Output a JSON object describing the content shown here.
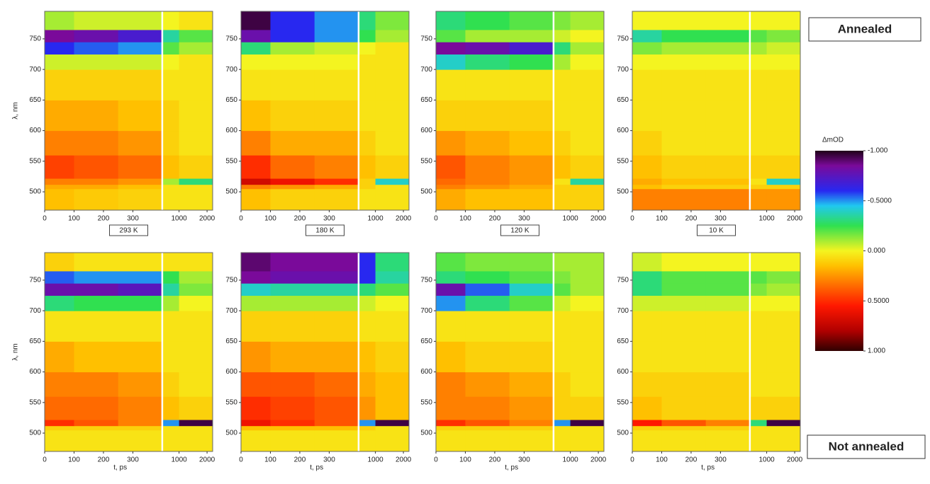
{
  "chart_data": {
    "type": "heatmap",
    "x_label": "t, ps",
    "y_label": "λ, nm",
    "xlim": [
      0,
      2200
    ],
    "xbreak": 400,
    "xticks": [
      0,
      100,
      200,
      300,
      1000,
      2000
    ],
    "ylim": [
      470,
      795
    ],
    "yticks": [
      500,
      550,
      600,
      650,
      700,
      750
    ],
    "xbins": [
      0,
      100,
      250,
      400,
      1000,
      2200
    ],
    "ybins": [
      470,
      505,
      512,
      522,
      560,
      600,
      650,
      700,
      725,
      745,
      765,
      795
    ],
    "zlim": [
      -1,
      1
    ],
    "colorscale": [
      [
        -1,
        "#200018"
      ],
      [
        -0.85,
        "#7a0a9a"
      ],
      [
        -0.6,
        "#2828f0"
      ],
      [
        -0.45,
        "#20c8f0"
      ],
      [
        -0.25,
        "#30e050"
      ],
      [
        0,
        "#f4f420"
      ],
      [
        0.15,
        "#ffc000"
      ],
      [
        0.35,
        "#ff6a00"
      ],
      [
        0.55,
        "#ff1800"
      ],
      [
        0.8,
        "#b00000"
      ],
      [
        1,
        "#300000"
      ]
    ],
    "colorbar_title": "ΔmOD",
    "colorbar_ticks": [
      {
        "value": -1,
        "label": "-1.000"
      },
      {
        "value": -0.5,
        "label": "-0.5000"
      },
      {
        "value": 0,
        "label": "0.000"
      },
      {
        "value": 0.5,
        "label": "0.5000"
      },
      {
        "value": 1,
        "label": "1.000"
      }
    ],
    "rows": [
      {
        "label": "Annealed",
        "panels": [
          {
            "title": "293 K",
            "z": [
              [
                0.15,
                0.12,
                0.1,
                0.05,
                0.05
              ],
              [
                0.2,
                0.2,
                0.15,
                0.05,
                0.05
              ],
              [
                0.3,
                0.3,
                0.25,
                -0.1,
                -0.3
              ],
              [
                0.45,
                0.4,
                0.35,
                0.15,
                0.1
              ],
              [
                0.3,
                0.3,
                0.25,
                0.1,
                0.05
              ],
              [
                0.2,
                0.2,
                0.15,
                0.1,
                0.05
              ],
              [
                0.1,
                0.1,
                0.1,
                0.05,
                0.05
              ],
              [
                -0.05,
                -0.05,
                -0.05,
                0,
                0.05
              ],
              [
                -0.6,
                -0.55,
                -0.5,
                -0.2,
                -0.1
              ],
              [
                -0.85,
                -0.8,
                -0.7,
                -0.35,
                -0.2
              ],
              [
                -0.1,
                -0.05,
                -0.05,
                0,
                0.05
              ]
            ]
          },
          {
            "title": "180 K",
            "z": [
              [
                0.15,
                0.1,
                0.1,
                0.05,
                0.05
              ],
              [
                0.3,
                0.25,
                0.2,
                0.1,
                0.05
              ],
              [
                0.7,
                0.6,
                0.5,
                0.1,
                -0.4
              ],
              [
                0.5,
                0.35,
                0.3,
                0.15,
                0.1
              ],
              [
                0.3,
                0.2,
                0.2,
                0.1,
                0.05
              ],
              [
                0.15,
                0.1,
                0.1,
                0.05,
                0.05
              ],
              [
                0.05,
                0.05,
                0.05,
                0.05,
                0.05
              ],
              [
                0,
                0,
                0,
                0.05,
                0.05
              ],
              [
                -0.3,
                -0.1,
                -0.05,
                0,
                0.05
              ],
              [
                -0.8,
                -0.6,
                -0.5,
                -0.25,
                -0.1
              ],
              [
                -0.95,
                -0.6,
                -0.5,
                -0.3,
                -0.15
              ]
            ]
          },
          {
            "title": "120 K",
            "z": [
              [
                0.2,
                0.15,
                0.15,
                0.1,
                0.1
              ],
              [
                0.3,
                0.25,
                0.2,
                0.1,
                0.1
              ],
              [
                0.35,
                0.3,
                0.25,
                0.05,
                -0.35
              ],
              [
                0.4,
                0.3,
                0.25,
                0.15,
                0.1
              ],
              [
                0.25,
                0.2,
                0.15,
                0.1,
                0.05
              ],
              [
                0.1,
                0.1,
                0.1,
                0.05,
                0.05
              ],
              [
                0.05,
                0.05,
                0.05,
                0.05,
                0.05
              ],
              [
                -0.4,
                -0.3,
                -0.25,
                -0.1,
                0
              ],
              [
                -0.85,
                -0.8,
                -0.7,
                -0.3,
                -0.1
              ],
              [
                -0.2,
                -0.1,
                -0.1,
                -0.05,
                0
              ],
              [
                -0.3,
                -0.25,
                -0.2,
                -0.15,
                -0.1
              ]
            ]
          },
          {
            "title": "10 K",
            "z": [
              [
                0.3,
                0.3,
                0.3,
                0.25,
                0.25
              ],
              [
                0.15,
                0.1,
                0.1,
                0.1,
                0.1
              ],
              [
                0.2,
                0.15,
                0.15,
                0.05,
                -0.4
              ],
              [
                0.15,
                0.1,
                0.1,
                0.1,
                0.1
              ],
              [
                0.1,
                0.05,
                0.05,
                0.05,
                0.05
              ],
              [
                0.05,
                0.05,
                0.05,
                0.05,
                0.05
              ],
              [
                0.05,
                0.05,
                0.05,
                0.05,
                0.05
              ],
              [
                0,
                0,
                0,
                0,
                0
              ],
              [
                -0.15,
                -0.1,
                -0.1,
                -0.1,
                -0.05
              ],
              [
                -0.35,
                -0.25,
                -0.25,
                -0.2,
                -0.15
              ],
              [
                0,
                0,
                0,
                0,
                0
              ]
            ]
          }
        ]
      },
      {
        "label": "Not annealed",
        "panels": [
          {
            "z": [
              [
                0.05,
                0.05,
                0.05,
                0.05,
                0.05
              ],
              [
                0.1,
                0.1,
                0.1,
                0.05,
                0.05
              ],
              [
                0.5,
                0.4,
                0.3,
                -0.5,
                -0.95
              ],
              [
                0.35,
                0.35,
                0.3,
                0.15,
                0.1
              ],
              [
                0.3,
                0.3,
                0.25,
                0.1,
                0.05
              ],
              [
                0.2,
                0.15,
                0.15,
                0.05,
                0.05
              ],
              [
                0.05,
                0.05,
                0.05,
                0.05,
                0.05
              ],
              [
                -0.3,
                -0.25,
                -0.25,
                -0.1,
                0
              ],
              [
                -0.8,
                -0.8,
                -0.75,
                -0.35,
                -0.15
              ],
              [
                -0.55,
                -0.5,
                -0.5,
                -0.25,
                -0.1
              ],
              [
                0.1,
                0.05,
                0.05,
                0.05,
                0.05
              ]
            ]
          },
          {
            "z": [
              [
                0.05,
                0.05,
                0.05,
                0.05,
                0.05
              ],
              [
                0.15,
                0.15,
                0.15,
                0.1,
                0.05
              ],
              [
                0.6,
                0.5,
                0.4,
                -0.5,
                -0.95
              ],
              [
                0.5,
                0.45,
                0.4,
                0.25,
                0.15
              ],
              [
                0.4,
                0.4,
                0.35,
                0.2,
                0.15
              ],
              [
                0.25,
                0.2,
                0.2,
                0.15,
                0.1
              ],
              [
                0.1,
                0.1,
                0.1,
                0.05,
                0.05
              ],
              [
                -0.1,
                -0.1,
                -0.1,
                -0.05,
                0
              ],
              [
                -0.4,
                -0.35,
                -0.35,
                -0.3,
                -0.2
              ],
              [
                -0.85,
                -0.8,
                -0.8,
                -0.6,
                -0.35
              ],
              [
                -0.9,
                -0.85,
                -0.85,
                -0.6,
                -0.3
              ]
            ]
          },
          {
            "z": [
              [
                0.05,
                0.05,
                0.05,
                0.05,
                0.05
              ],
              [
                0.1,
                0.1,
                0.1,
                0.05,
                0.05
              ],
              [
                0.5,
                0.4,
                0.3,
                -0.5,
                -0.95
              ],
              [
                0.3,
                0.3,
                0.25,
                0.1,
                0.1
              ],
              [
                0.3,
                0.25,
                0.2,
                0.1,
                0.05
              ],
              [
                0.15,
                0.1,
                0.1,
                0.05,
                0.05
              ],
              [
                0.05,
                0.05,
                0.05,
                0.05,
                0.05
              ],
              [
                -0.5,
                -0.3,
                -0.2,
                -0.05,
                0
              ],
              [
                -0.8,
                -0.55,
                -0.4,
                -0.2,
                -0.1
              ],
              [
                -0.3,
                -0.25,
                -0.2,
                -0.15,
                -0.1
              ],
              [
                -0.2,
                -0.15,
                -0.15,
                -0.1,
                -0.1
              ]
            ]
          },
          {
            "z": [
              [
                0.05,
                0.05,
                0.05,
                0.05,
                0.05
              ],
              [
                0.1,
                0.1,
                0.1,
                0.05,
                0.05
              ],
              [
                0.55,
                0.4,
                0.3,
                -0.3,
                -0.95
              ],
              [
                0.15,
                0.1,
                0.1,
                0.1,
                0.1
              ],
              [
                0.1,
                0.1,
                0.1,
                0.05,
                0.05
              ],
              [
                0.05,
                0.05,
                0.05,
                0.05,
                0.05
              ],
              [
                0.05,
                0.05,
                0.05,
                0.05,
                0.05
              ],
              [
                -0.05,
                -0.05,
                -0.05,
                0,
                0
              ],
              [
                -0.3,
                -0.2,
                -0.2,
                -0.15,
                -0.1
              ],
              [
                -0.3,
                -0.2,
                -0.2,
                -0.2,
                -0.15
              ],
              [
                -0.05,
                0,
                0,
                0,
                0
              ]
            ]
          }
        ]
      }
    ]
  }
}
